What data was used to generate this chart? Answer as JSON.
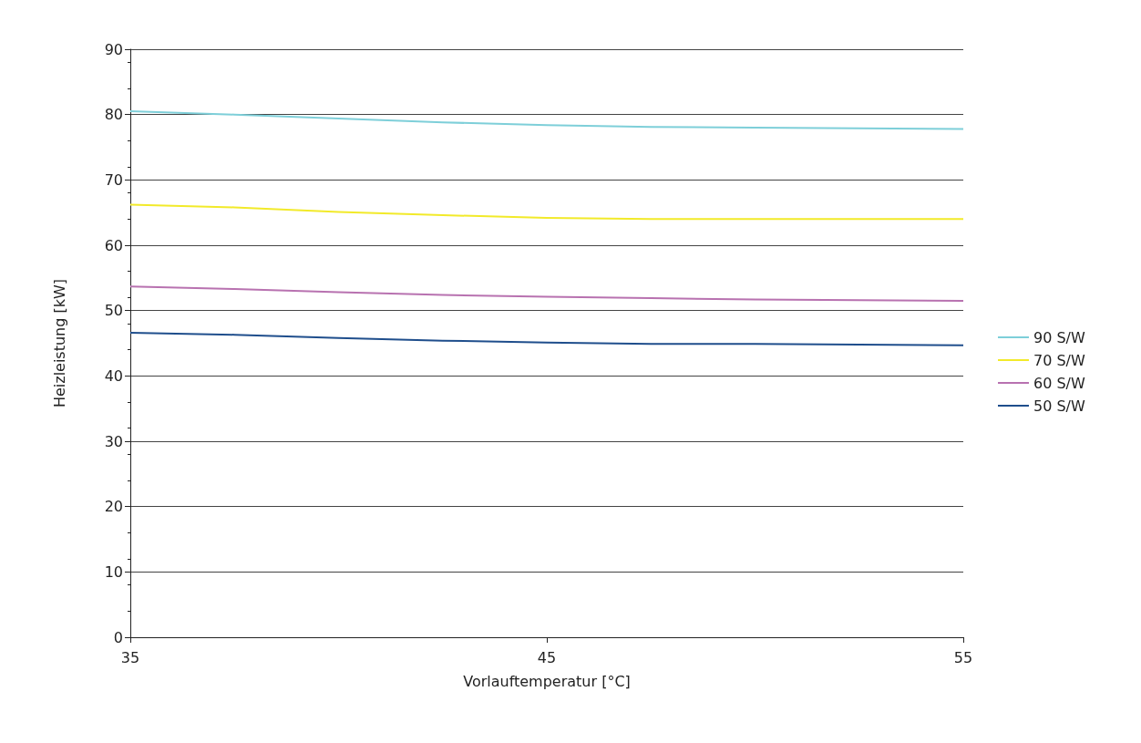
{
  "chart_data": {
    "type": "line",
    "xlabel": "Vorlauftemperatur [°C]",
    "ylabel": "Heizleistung [kW]",
    "x": [
      35,
      37.5,
      40,
      42.5,
      45,
      47.5,
      50,
      52.5,
      55
    ],
    "series": [
      {
        "name": "90 S/W",
        "color": "#7ecfd9",
        "values": [
          80.5,
          80.0,
          79.4,
          78.8,
          78.4,
          78.1,
          78.0,
          77.9,
          77.8
        ]
      },
      {
        "name": "70 S/W",
        "color": "#f2ea2a",
        "values": [
          66.2,
          65.8,
          65.1,
          64.6,
          64.2,
          64.0,
          64.0,
          64.0,
          64.0
        ]
      },
      {
        "name": "60 S/W",
        "color": "#b872b0",
        "values": [
          53.7,
          53.3,
          52.8,
          52.4,
          52.1,
          51.9,
          51.7,
          51.6,
          51.5
        ]
      },
      {
        "name": "50 S/W",
        "color": "#1f4e8c",
        "values": [
          46.6,
          46.3,
          45.8,
          45.4,
          45.1,
          44.9,
          44.9,
          44.8,
          44.7
        ]
      }
    ],
    "xlim": [
      35,
      55
    ],
    "xticks": [
      35,
      45,
      55
    ],
    "ylim": [
      0,
      90
    ],
    "yticks": [
      0,
      10,
      20,
      30,
      40,
      50,
      60,
      70,
      80,
      90
    ],
    "grid": "y",
    "legend": "right",
    "marker": "none",
    "line_style": "solid"
  }
}
